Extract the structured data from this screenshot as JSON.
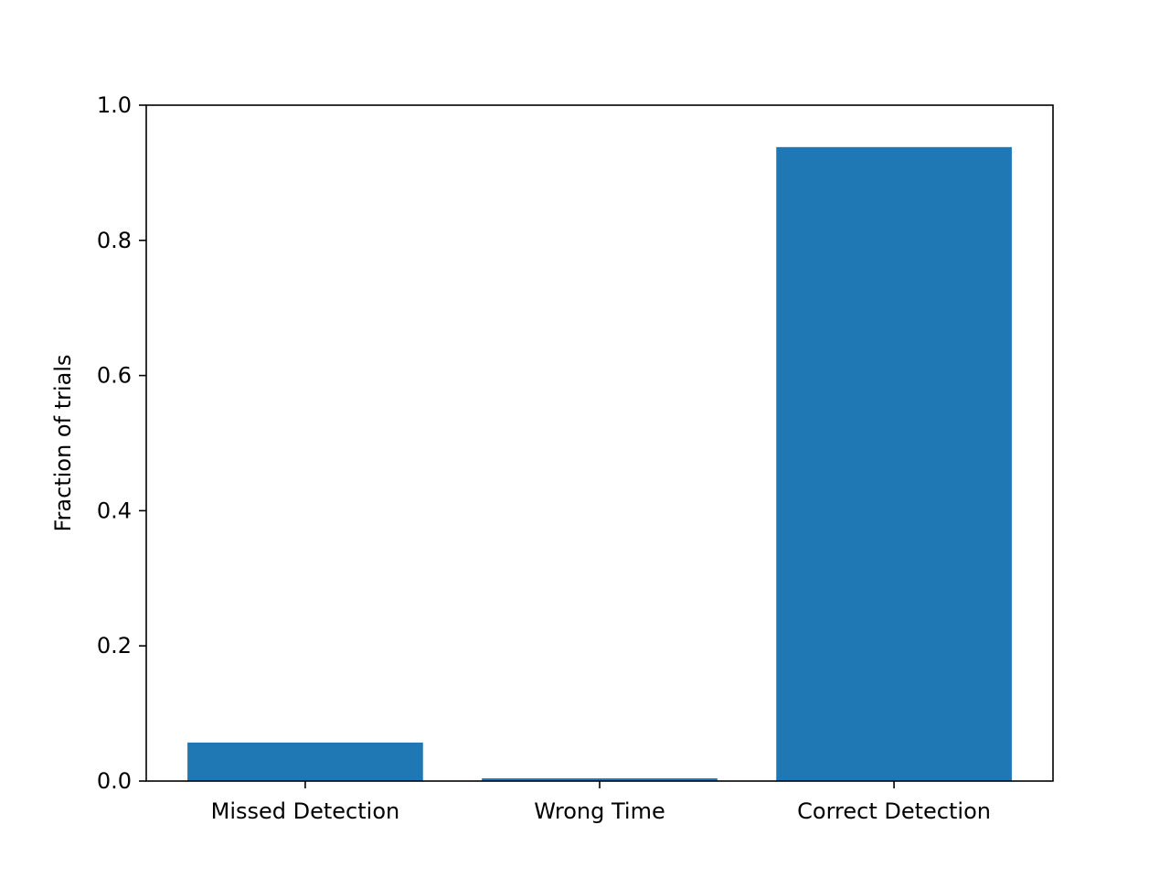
{
  "chart_data": {
    "type": "bar",
    "categories": [
      "Missed Detection",
      "Wrong Time",
      "Correct Detection"
    ],
    "values": [
      0.057,
      0.004,
      0.938
    ],
    "title": "",
    "xlabel": "",
    "ylabel": "Fraction of trials",
    "ylim": [
      0.0,
      1.0
    ],
    "yticks": [
      "0.0",
      "0.2",
      "0.4",
      "0.6",
      "0.8",
      "1.0"
    ],
    "grid": false,
    "bar_color": "#1f77b4"
  }
}
